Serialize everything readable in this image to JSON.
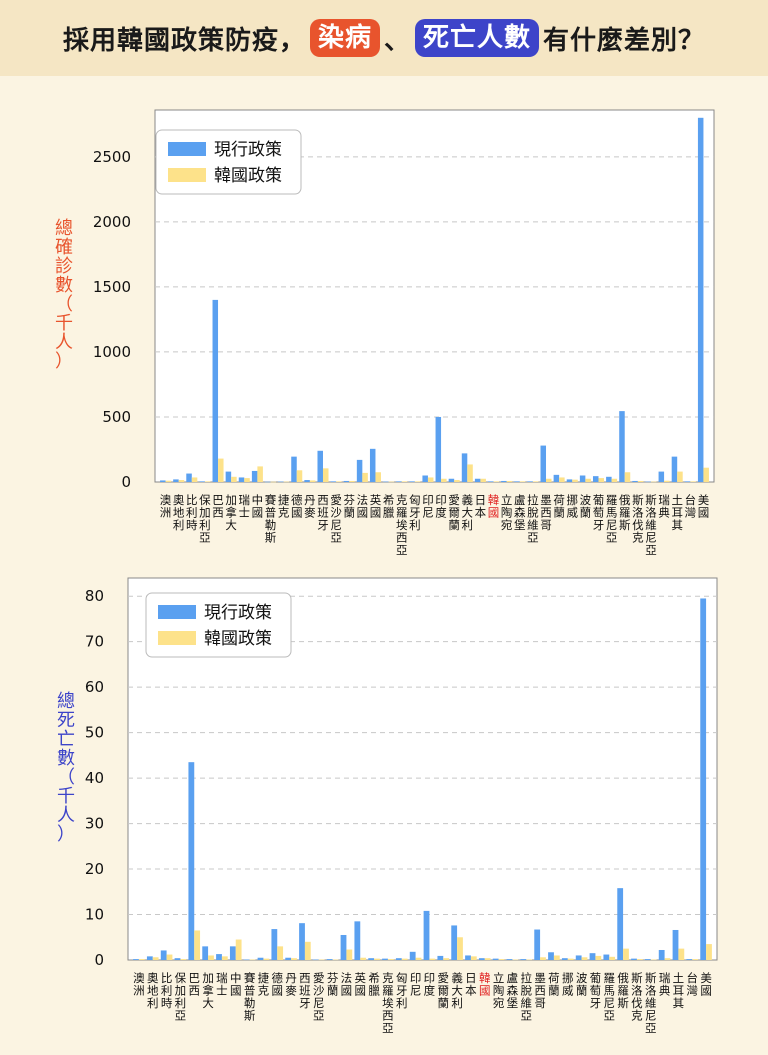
{
  "header": {
    "part1": "採用韓國政策防疫，",
    "pill1": "染病",
    "sep": "、",
    "pill2": "死亡人數",
    "part2": "有什麼差別？"
  },
  "colors": {
    "current": "#5aa0f0",
    "korea": "#fde28a",
    "highlight": "#e02020"
  },
  "chart_data": [
    {
      "type": "bar",
      "ylabel": "總確診數（千人）",
      "ylim": [
        0,
        2860
      ],
      "yticks": [
        0,
        500,
        1000,
        1500,
        2000,
        2500
      ],
      "grid": true,
      "legend": "top-left",
      "highlight_category": "韓國",
      "categories": [
        "澳洲",
        "奧地利",
        "比利時",
        "保加利亞",
        "巴西",
        "加拿大",
        "瑞士",
        "中國",
        "賽普勒斯",
        "捷克",
        "德國",
        "丹麥",
        "西班牙",
        "愛沙尼亞",
        "芬蘭",
        "法國",
        "英國",
        "希臘",
        "克羅埃西亞",
        "匈牙利",
        "印尼",
        "印度",
        "愛爾蘭",
        "義大利",
        "日本",
        "韓國",
        "立陶宛",
        "盧森堡",
        "拉脫維亞",
        "墨西哥",
        "荷蘭",
        "挪威",
        "波蘭",
        "葡萄牙",
        "羅馬尼亞",
        "俄羅斯",
        "斯洛伐克",
        "斯洛維尼亞",
        "瑞典",
        "土耳其",
        "台灣",
        "美國"
      ],
      "series": [
        {
          "name": "現行政策",
          "values": [
            12,
            20,
            65,
            5,
            1400,
            80,
            35,
            85,
            2,
            3,
            195,
            15,
            240,
            5,
            8,
            170,
            255,
            3,
            5,
            5,
            50,
            500,
            25,
            220,
            25,
            5,
            8,
            5,
            5,
            280,
            55,
            20,
            50,
            45,
            40,
            545,
            8,
            3,
            80,
            195,
            5,
            2800
          ]
        },
        {
          "name": "韓國政策",
          "values": [
            10,
            15,
            35,
            5,
            180,
            40,
            30,
            120,
            2,
            3,
            90,
            12,
            105,
            5,
            8,
            70,
            75,
            3,
            5,
            5,
            35,
            25,
            15,
            135,
            25,
            5,
            8,
            5,
            5,
            25,
            35,
            18,
            25,
            30,
            25,
            75,
            8,
            3,
            10,
            80,
            5,
            110
          ]
        }
      ]
    },
    {
      "type": "bar",
      "ylabel": "總死亡數（千人）",
      "ylim": [
        0,
        84
      ],
      "yticks": [
        0,
        10,
        20,
        30,
        40,
        50,
        60,
        70,
        80
      ],
      "grid": true,
      "legend": "top-left",
      "highlight_category": "韓國",
      "categories": [
        "澳洲",
        "奧地利",
        "比利時",
        "保加利亞",
        "巴西",
        "加拿大",
        "瑞士",
        "中國",
        "賽普勒斯",
        "捷克",
        "德國",
        "丹麥",
        "西班牙",
        "愛沙尼亞",
        "芬蘭",
        "法國",
        "英國",
        "希臘",
        "克羅埃西亞",
        "匈牙利",
        "印尼",
        "印度",
        "愛爾蘭",
        "義大利",
        "日本",
        "韓國",
        "立陶宛",
        "盧森堡",
        "拉脫維亞",
        "墨西哥",
        "荷蘭",
        "挪威",
        "波蘭",
        "葡萄牙",
        "羅馬尼亞",
        "俄羅斯",
        "斯洛伐克",
        "斯洛維尼亞",
        "瑞典",
        "土耳其",
        "台灣",
        "美國"
      ],
      "series": [
        {
          "name": "現行政策",
          "values": [
            0.2,
            0.8,
            2.1,
            0.4,
            43.5,
            3.0,
            1.3,
            3.0,
            0.1,
            0.5,
            6.8,
            0.5,
            8.1,
            0.1,
            0.2,
            5.5,
            8.5,
            0.4,
            0.3,
            0.4,
            1.8,
            10.8,
            0.9,
            7.6,
            1.0,
            0.4,
            0.3,
            0.2,
            0.2,
            6.7,
            1.7,
            0.4,
            1.0,
            1.5,
            1.2,
            15.8,
            0.3,
            0.2,
            2.2,
            6.6,
            0.2,
            79.5
          ]
        },
        {
          "name": "韓國政策",
          "values": [
            0.2,
            0.6,
            1.2,
            0.2,
            6.5,
            1.0,
            0.8,
            4.5,
            0.1,
            0.3,
            3.0,
            0.4,
            4.0,
            0.1,
            0.1,
            2.3,
            0.5,
            0.3,
            0.2,
            0.3,
            0.5,
            0.3,
            0.4,
            5.0,
            0.8,
            0.4,
            0.2,
            0.1,
            0.1,
            0.6,
            1.0,
            0.3,
            0.6,
            0.9,
            0.7,
            2.5,
            0.2,
            0.1,
            0.4,
            2.5,
            0.2,
            3.5
          ]
        }
      ]
    }
  ]
}
